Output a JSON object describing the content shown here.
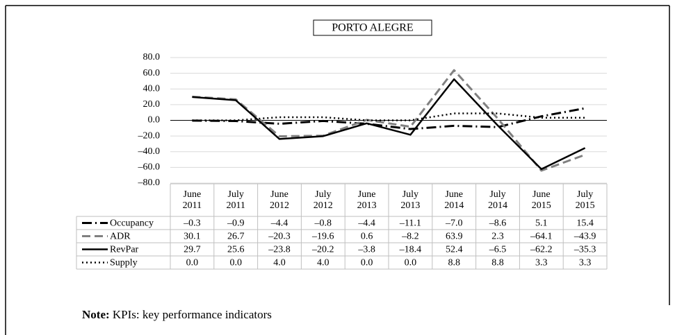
{
  "chart_data": {
    "type": "line",
    "title": "PORTO ALEGRE",
    "categories": [
      "June 2011",
      "July 2011",
      "June 2012",
      "July 2012",
      "June 2013",
      "July 2013",
      "June 2014",
      "July 2014",
      "June 2015",
      "July 2015"
    ],
    "ylim": [
      -80,
      80
    ],
    "yticks": [
      {
        "value": 80,
        "label": "80.0"
      },
      {
        "value": 60,
        "label": "60.0"
      },
      {
        "value": 40,
        "label": "40.0"
      },
      {
        "value": 20,
        "label": "20.0"
      },
      {
        "value": 0,
        "label": "0.0"
      },
      {
        "value": -20,
        "label": "–20.0"
      },
      {
        "value": -40,
        "label": "–40.0"
      },
      {
        "value": -60,
        "label": "–60.0"
      },
      {
        "value": -80,
        "label": "–80.0"
      }
    ],
    "grid": true,
    "series": [
      {
        "name": "Occupancy",
        "color": "#000000",
        "dash": "dashdot",
        "values": [
          -0.3,
          -0.9,
          -4.4,
          -0.8,
          -4.4,
          -11.1,
          -7.0,
          -8.6,
          5.1,
          15.4
        ],
        "value_labels": [
          "–0.3",
          "–0.9",
          "–4.4",
          "–0.8",
          "–4.4",
          "–11.1",
          "–7.0",
          "–8.6",
          "5.1",
          "15.4"
        ]
      },
      {
        "name": "ADR",
        "color": "#808080",
        "dash": "dash",
        "values": [
          30.1,
          26.7,
          -20.3,
          -19.6,
          0.6,
          -8.2,
          63.9,
          2.3,
          -64.1,
          -43.9
        ],
        "value_labels": [
          "30.1",
          "26.7",
          "–20.3",
          "–19.6",
          "0.6",
          "–8.2",
          "63.9",
          "2.3",
          "–64.1",
          "–43.9"
        ]
      },
      {
        "name": "RevPar",
        "color": "#000000",
        "dash": "solid",
        "values": [
          29.7,
          25.6,
          -23.8,
          -20.2,
          -3.8,
          -18.4,
          52.4,
          -6.5,
          -62.2,
          -35.3
        ],
        "value_labels": [
          "29.7",
          "25.6",
          "–23.8",
          "–20.2",
          "–3.8",
          "–18.4",
          "52.4",
          "–6.5",
          "–62.2",
          "–35.3"
        ]
      },
      {
        "name": "Supply",
        "color": "#000000",
        "dash": "dot",
        "values": [
          0.0,
          0.0,
          4.0,
          4.0,
          0.0,
          0.0,
          8.8,
          8.8,
          3.3,
          3.3
        ],
        "value_labels": [
          "0.0",
          "0.0",
          "4.0",
          "4.0",
          "0.0",
          "0.0",
          "8.8",
          "8.8",
          "3.3",
          "3.3"
        ]
      }
    ]
  },
  "note": {
    "label": "Note:",
    "text": "KPIs: key performance indicators"
  }
}
